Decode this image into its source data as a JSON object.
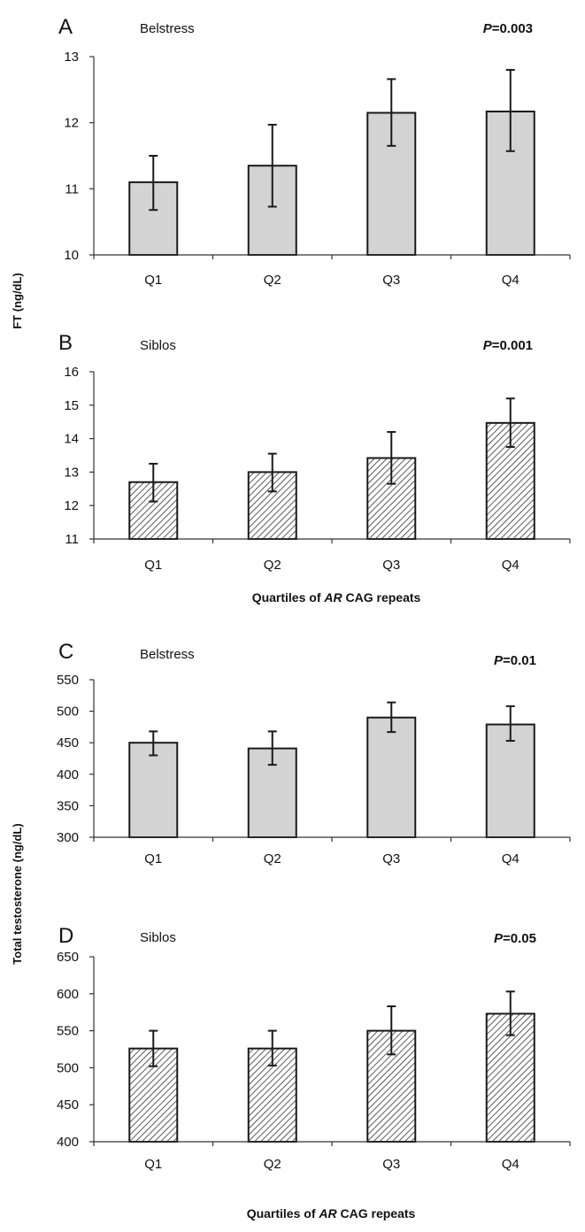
{
  "figure": {
    "ylabel_top": "FT (ng/dL)",
    "ylabel_bottom": "Total testosterone (ng/dL)",
    "xlabel_parts": [
      "Quartiles of ",
      "AR",
      " CAG repeats"
    ]
  },
  "chart_data": [
    {
      "panel": "A",
      "type": "bar",
      "title": "Belstress",
      "p_label": "P",
      "p_value": "=0.003",
      "categories": [
        "Q1",
        "Q2",
        "Q3",
        "Q4"
      ],
      "values": [
        11.1,
        11.35,
        12.15,
        12.17
      ],
      "err_low": [
        10.68,
        10.73,
        11.65,
        11.57
      ],
      "err_high": [
        11.5,
        11.97,
        12.66,
        12.8
      ],
      "ylim": [
        10,
        13
      ],
      "yticks": [
        10,
        11,
        12,
        13
      ],
      "fill": "solid",
      "xlabel": ""
    },
    {
      "panel": "B",
      "type": "bar",
      "title": "Siblos",
      "p_label": "P",
      "p_value": "=0.001",
      "categories": [
        "Q1",
        "Q2",
        "Q3",
        "Q4"
      ],
      "values": [
        12.7,
        13.0,
        13.42,
        14.47
      ],
      "err_low": [
        12.12,
        12.42,
        12.65,
        13.75
      ],
      "err_high": [
        13.25,
        13.55,
        14.2,
        15.2
      ],
      "ylim": [
        11,
        16
      ],
      "yticks": [
        11,
        12,
        13,
        14,
        15,
        16
      ],
      "fill": "hatch",
      "xlabel": "Quartiles of AR CAG repeats"
    },
    {
      "panel": "C",
      "type": "bar",
      "title": "Belstress",
      "p_label": "P",
      "p_value": "=0.01",
      "categories": [
        "Q1",
        "Q2",
        "Q3",
        "Q4"
      ],
      "values": [
        450,
        441,
        490,
        479
      ],
      "err_low": [
        430,
        415,
        467,
        453
      ],
      "err_high": [
        468,
        468,
        514,
        508
      ],
      "ylim": [
        300,
        550
      ],
      "yticks": [
        300,
        350,
        400,
        450,
        500,
        550
      ],
      "fill": "solid",
      "xlabel": ""
    },
    {
      "panel": "D",
      "type": "bar",
      "title": "Siblos",
      "p_label": "P",
      "p_value": "=0.05",
      "categories": [
        "Q1",
        "Q2",
        "Q3",
        "Q4"
      ],
      "values": [
        526,
        526,
        550,
        573
      ],
      "err_low": [
        502,
        503,
        518,
        544
      ],
      "err_high": [
        550,
        550,
        583,
        603
      ],
      "ylim": [
        400,
        650
      ],
      "yticks": [
        400,
        450,
        500,
        550,
        600,
        650
      ],
      "fill": "hatch",
      "xlabel": "Quartiles of AR CAG repeats"
    }
  ],
  "colors": {
    "solid_fill": "#d3d3d3",
    "hatch_bg": "#ffffff",
    "hatch_line": "#333333",
    "bar_stroke": "#1a1a1a"
  }
}
